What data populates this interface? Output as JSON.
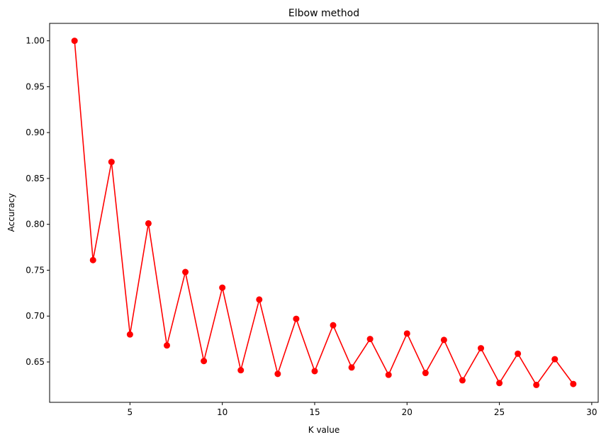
{
  "chart_data": {
    "type": "line",
    "title": "Elbow method",
    "xlabel": "K value",
    "ylabel": "Accuracy",
    "xlim": [
      0.65,
      30.35
    ],
    "ylim": [
      0.606,
      1.019
    ],
    "xticks": [
      5,
      10,
      15,
      20,
      25,
      30
    ],
    "xtick_labels": [
      "5",
      "10",
      "15",
      "20",
      "25",
      "30"
    ],
    "yticks": [
      0.65,
      0.7,
      0.75,
      0.8,
      0.85,
      0.9,
      0.95,
      1.0
    ],
    "ytick_labels": [
      "0.65",
      "0.70",
      "0.75",
      "0.80",
      "0.85",
      "0.90",
      "0.95",
      "1.00"
    ],
    "grid": false,
    "color": "#ff0000",
    "marker": "circle",
    "x": [
      2,
      3,
      4,
      5,
      6,
      7,
      8,
      9,
      10,
      11,
      12,
      13,
      14,
      15,
      16,
      17,
      18,
      19,
      20,
      21,
      22,
      23,
      24,
      25,
      26,
      27,
      28,
      29
    ],
    "y": [
      1.0,
      0.761,
      0.868,
      0.68,
      0.801,
      0.668,
      0.748,
      0.651,
      0.731,
      0.641,
      0.718,
      0.637,
      0.697,
      0.64,
      0.69,
      0.644,
      0.675,
      0.636,
      0.681,
      0.638,
      0.674,
      0.63,
      0.665,
      0.627,
      0.659,
      0.625,
      0.653,
      0.626
    ]
  }
}
